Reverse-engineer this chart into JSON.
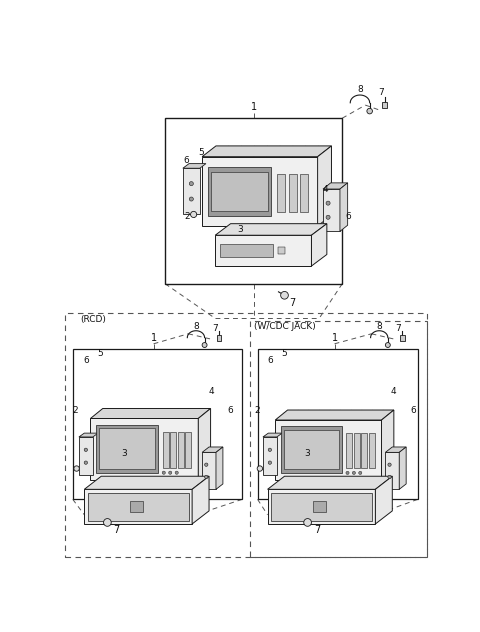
{
  "bg_color": "#ffffff",
  "lc": "#1a1a1a",
  "dc": "#555555",
  "lbl": "#111111",
  "figsize": [
    4.8,
    6.32
  ],
  "dpi": 100,
  "lfs": 7,
  "sfs": 6.5
}
